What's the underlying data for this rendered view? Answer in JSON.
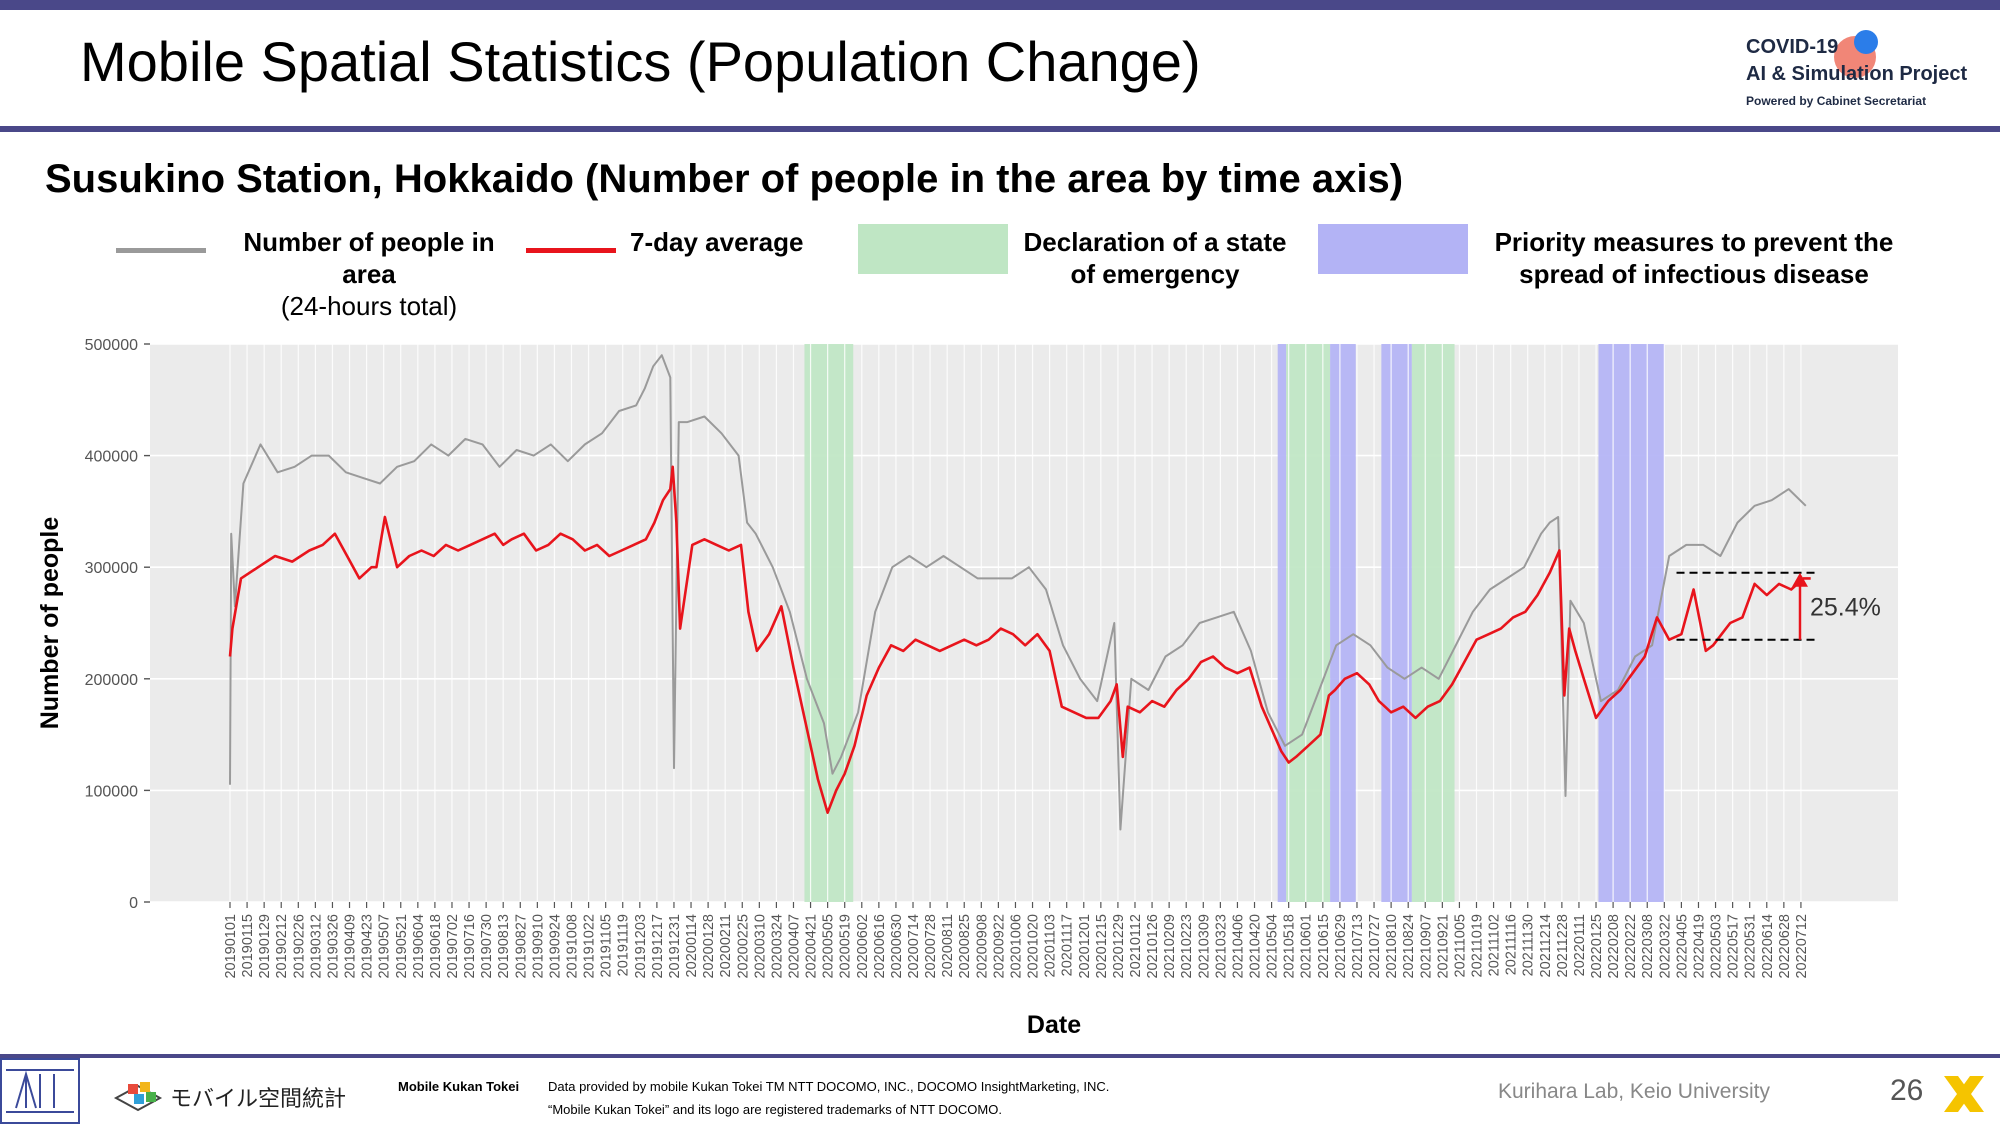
{
  "slide": {
    "title": "Mobile Spatial Statistics (Population Change)",
    "subtitle": "Susukino Station, Hokkaido (Number of people in the area by time axis)",
    "page_number": "26",
    "lab": "Kurihara Lab, Keio University"
  },
  "logo": {
    "line1": "COVID-19",
    "line2": "AI & Simulation Project",
    "line3": "Powered by Cabinet Secretariat"
  },
  "legend": {
    "raw_label": "Number of people in area",
    "raw_sub": "(24-hours total)",
    "avg_label": "7-day average",
    "emergency_label_1": "Declaration of a state",
    "emergency_label_2": "of emergency",
    "priority_label_1": "Priority measures to prevent the",
    "priority_label_2": "spread of infectious disease"
  },
  "footer": {
    "brand_text": "モバイル空間統計",
    "brand_label": "Mobile Kukan Tokei",
    "credit_line1": "Data provided by mobile Kukan Tokei TM NTT DOCOMO, INC., DOCOMO InsightMarketing, INC.",
    "credit_line2": "“Mobile Kukan Tokei” and its logo are registered trademarks of NTT DOCOMO."
  },
  "colors": {
    "raw_line": "#9a9a9a",
    "avg_line": "#e8141c",
    "emergency": "#bfe6c4",
    "priority": "#b3b3f5",
    "panel_bg": "#ebebeb",
    "accent_bar": "#4a4889"
  },
  "chart_data": {
    "type": "line",
    "xlabel": "Date",
    "ylabel": "Number of people",
    "ylim": [
      0,
      500000
    ],
    "yticks": [
      0,
      100000,
      200000,
      300000,
      400000,
      500000
    ],
    "ytick_labels": [
      "0",
      "100000",
      "200000",
      "300000",
      "400000",
      "500000"
    ],
    "grid": true,
    "x_start": "2019-01-01",
    "x_end": "2022-07-26",
    "xtick_labels": [
      "20190101",
      "20190115",
      "20190129",
      "20190212",
      "20190226",
      "20190312",
      "20190326",
      "20190409",
      "20190423",
      "20190507",
      "20190521",
      "20190604",
      "20190618",
      "20190702",
      "20190716",
      "20190730",
      "20190813",
      "20190827",
      "20190910",
      "20190924",
      "20191008",
      "20191022",
      "20191105",
      "20191119",
      "20191203",
      "20191217",
      "20191231",
      "20200114",
      "20200128",
      "20200211",
      "20200225",
      "20200310",
      "20200324",
      "20200407",
      "20200421",
      "20200505",
      "20200519",
      "20200602",
      "20200616",
      "20200630",
      "20200714",
      "20200728",
      "20200811",
      "20200825",
      "20200908",
      "20200922",
      "20201006",
      "20201020",
      "20201103",
      "20201117",
      "20201201",
      "20201215",
      "20201229",
      "20210112",
      "20210126",
      "20210209",
      "20210223",
      "20210309",
      "20210323",
      "20210406",
      "20210420",
      "20210504",
      "20210518",
      "20210601",
      "20210615",
      "20210629",
      "20210713",
      "20210727",
      "20210810",
      "20210824",
      "20210907",
      "20210921",
      "20211005",
      "20211019",
      "20211102",
      "20211116",
      "20211130",
      "20211214",
      "20211228",
      "20220111",
      "20220125",
      "20220208",
      "20220222",
      "20220308",
      "20220322",
      "20220405",
      "20220419",
      "20220503",
      "20220517",
      "20220531",
      "20220614",
      "20220628",
      "20220712"
    ],
    "shaded_periods": [
      {
        "kind": "emergency",
        "start": "2020-04-16",
        "end": "2020-05-25"
      },
      {
        "kind": "priority",
        "start": "2021-05-09",
        "end": "2021-05-15"
      },
      {
        "kind": "emergency",
        "start": "2021-05-16",
        "end": "2021-06-20"
      },
      {
        "kind": "priority",
        "start": "2021-06-21",
        "end": "2021-07-11"
      },
      {
        "kind": "priority",
        "start": "2021-08-02",
        "end": "2021-08-26"
      },
      {
        "kind": "emergency",
        "start": "2021-08-27",
        "end": "2021-09-30"
      },
      {
        "kind": "priority",
        "start": "2022-01-27",
        "end": "2022-03-21"
      }
    ],
    "series": [
      {
        "name": "Number of people in area",
        "style": "raw",
        "dates": [
          "2019-01-01",
          "2019-01-02",
          "2019-01-05",
          "2019-01-12",
          "2019-01-26",
          "2019-02-09",
          "2019-02-23",
          "2019-03-09",
          "2019-03-23",
          "2019-04-06",
          "2019-04-20",
          "2019-05-04",
          "2019-05-18",
          "2019-06-01",
          "2019-06-15",
          "2019-06-29",
          "2019-07-13",
          "2019-07-27",
          "2019-08-10",
          "2019-08-24",
          "2019-09-07",
          "2019-09-21",
          "2019-10-05",
          "2019-10-19",
          "2019-11-02",
          "2019-11-16",
          "2019-11-30",
          "2019-12-07",
          "2019-12-14",
          "2019-12-21",
          "2019-12-28",
          "2019-12-31",
          "2020-01-04",
          "2020-01-11",
          "2020-01-25",
          "2020-02-08",
          "2020-02-22",
          "2020-02-29",
          "2020-03-07",
          "2020-03-21",
          "2020-04-04",
          "2020-04-18",
          "2020-05-02",
          "2020-05-09",
          "2020-05-16",
          "2020-05-30",
          "2020-06-13",
          "2020-06-27",
          "2020-07-11",
          "2020-07-25",
          "2020-08-08",
          "2020-08-22",
          "2020-09-05",
          "2020-09-19",
          "2020-10-03",
          "2020-10-17",
          "2020-10-31",
          "2020-11-14",
          "2020-11-28",
          "2020-12-12",
          "2020-12-26",
          "2020-12-31",
          "2021-01-09",
          "2021-01-23",
          "2021-02-06",
          "2021-02-20",
          "2021-03-06",
          "2021-03-20",
          "2021-04-03",
          "2021-04-17",
          "2021-05-01",
          "2021-05-15",
          "2021-05-29",
          "2021-06-12",
          "2021-06-26",
          "2021-07-10",
          "2021-07-24",
          "2021-08-07",
          "2021-08-21",
          "2021-09-04",
          "2021-09-18",
          "2021-10-02",
          "2021-10-16",
          "2021-10-30",
          "2021-11-13",
          "2021-11-27",
          "2021-12-11",
          "2021-12-18",
          "2021-12-25",
          "2021-12-31",
          "2022-01-04",
          "2022-01-15",
          "2022-01-29",
          "2022-02-12",
          "2022-02-26",
          "2022-03-12",
          "2022-03-26",
          "2022-04-09",
          "2022-04-23",
          "2022-05-07",
          "2022-05-21",
          "2022-06-04",
          "2022-06-18",
          "2022-07-02",
          "2022-07-16"
        ],
        "values": [
          105000,
          330000,
          265000,
          375000,
          410000,
          385000,
          390000,
          400000,
          400000,
          385000,
          380000,
          375000,
          390000,
          395000,
          410000,
          400000,
          415000,
          410000,
          390000,
          405000,
          400000,
          410000,
          395000,
          410000,
          420000,
          440000,
          445000,
          460000,
          480000,
          490000,
          470000,
          120000,
          430000,
          430000,
          435000,
          420000,
          400000,
          340000,
          330000,
          300000,
          260000,
          200000,
          160000,
          115000,
          130000,
          170000,
          260000,
          300000,
          310000,
          300000,
          310000,
          300000,
          290000,
          290000,
          290000,
          300000,
          280000,
          230000,
          200000,
          180000,
          250000,
          65000,
          200000,
          190000,
          220000,
          230000,
          250000,
          255000,
          260000,
          225000,
          170000,
          140000,
          150000,
          190000,
          230000,
          240000,
          230000,
          210000,
          200000,
          210000,
          200000,
          230000,
          260000,
          280000,
          290000,
          300000,
          330000,
          340000,
          345000,
          95000,
          270000,
          250000,
          180000,
          190000,
          220000,
          230000,
          310000,
          320000,
          320000,
          310000,
          340000,
          355000,
          360000,
          370000,
          355000
        ]
      },
      {
        "name": "7-day average",
        "style": "avg",
        "dates": [
          "2019-01-01",
          "2019-01-03",
          "2019-01-10",
          "2019-01-24",
          "2019-02-07",
          "2019-02-21",
          "2019-03-07",
          "2019-03-18",
          "2019-03-28",
          "2019-04-07",
          "2019-04-17",
          "2019-04-27",
          "2019-05-01",
          "2019-05-08",
          "2019-05-18",
          "2019-05-28",
          "2019-06-07",
          "2019-06-17",
          "2019-06-27",
          "2019-07-07",
          "2019-07-17",
          "2019-07-27",
          "2019-08-06",
          "2019-08-13",
          "2019-08-20",
          "2019-08-30",
          "2019-09-09",
          "2019-09-19",
          "2019-09-29",
          "2019-10-09",
          "2019-10-19",
          "2019-10-29",
          "2019-11-08",
          "2019-11-18",
          "2019-11-28",
          "2019-12-08",
          "2019-12-15",
          "2019-12-22",
          "2019-12-28",
          "2019-12-30",
          "2020-01-02",
          "2020-01-05",
          "2020-01-15",
          "2020-01-25",
          "2020-02-04",
          "2020-02-14",
          "2020-02-24",
          "2020-03-01",
          "2020-03-08",
          "2020-03-18",
          "2020-03-28",
          "2020-04-07",
          "2020-04-17",
          "2020-04-27",
          "2020-05-05",
          "2020-05-12",
          "2020-05-19",
          "2020-05-27",
          "2020-06-06",
          "2020-06-16",
          "2020-06-26",
          "2020-07-06",
          "2020-07-16",
          "2020-07-26",
          "2020-08-05",
          "2020-08-15",
          "2020-08-25",
          "2020-09-04",
          "2020-09-14",
          "2020-09-24",
          "2020-10-04",
          "2020-10-14",
          "2020-10-24",
          "2020-11-03",
          "2020-11-13",
          "2020-11-23",
          "2020-12-03",
          "2020-12-13",
          "2020-12-23",
          "2020-12-28",
          "2021-01-02",
          "2021-01-06",
          "2021-01-16",
          "2021-01-26",
          "2021-02-05",
          "2021-02-15",
          "2021-02-25",
          "2021-03-07",
          "2021-03-17",
          "2021-03-27",
          "2021-04-06",
          "2021-04-16",
          "2021-04-26",
          "2021-05-06",
          "2021-05-12",
          "2021-05-18",
          "2021-05-24",
          "2021-06-03",
          "2021-06-13",
          "2021-06-20",
          "2021-06-25",
          "2021-07-03",
          "2021-07-13",
          "2021-07-23",
          "2021-07-31",
          "2021-08-10",
          "2021-08-20",
          "2021-08-30",
          "2021-09-09",
          "2021-09-19",
          "2021-09-29",
          "2021-10-09",
          "2021-10-19",
          "2021-10-29",
          "2021-11-08",
          "2021-11-18",
          "2021-11-28",
          "2021-12-08",
          "2021-12-18",
          "2021-12-26",
          "2021-12-30",
          "2022-01-03",
          "2022-01-08",
          "2022-01-15",
          "2022-01-25",
          "2022-02-04",
          "2022-02-14",
          "2022-02-24",
          "2022-03-06",
          "2022-03-16",
          "2022-03-26",
          "2022-04-05",
          "2022-04-15",
          "2022-04-25",
          "2022-05-01",
          "2022-05-08",
          "2022-05-15",
          "2022-05-25",
          "2022-06-04",
          "2022-06-14",
          "2022-06-24",
          "2022-07-04",
          "2022-07-14",
          "2022-07-20"
        ],
        "values": [
          220000,
          245000,
          290000,
          300000,
          310000,
          305000,
          315000,
          320000,
          330000,
          310000,
          290000,
          300000,
          300000,
          345000,
          300000,
          310000,
          315000,
          310000,
          320000,
          315000,
          320000,
          325000,
          330000,
          320000,
          325000,
          330000,
          315000,
          320000,
          330000,
          325000,
          315000,
          320000,
          310000,
          315000,
          320000,
          325000,
          340000,
          360000,
          370000,
          390000,
          340000,
          245000,
          320000,
          325000,
          320000,
          315000,
          320000,
          260000,
          225000,
          240000,
          265000,
          210000,
          160000,
          110000,
          80000,
          100000,
          115000,
          140000,
          185000,
          210000,
          230000,
          225000,
          235000,
          230000,
          225000,
          230000,
          235000,
          230000,
          235000,
          245000,
          240000,
          230000,
          240000,
          225000,
          175000,
          170000,
          165000,
          165000,
          180000,
          195000,
          130000,
          175000,
          170000,
          180000,
          175000,
          190000,
          200000,
          215000,
          220000,
          210000,
          205000,
          210000,
          175000,
          150000,
          135000,
          125000,
          130000,
          140000,
          150000,
          185000,
          190000,
          200000,
          205000,
          195000,
          180000,
          170000,
          175000,
          165000,
          175000,
          180000,
          195000,
          215000,
          235000,
          240000,
          245000,
          255000,
          260000,
          275000,
          295000,
          315000,
          185000,
          245000,
          225000,
          200000,
          165000,
          180000,
          190000,
          205000,
          220000,
          255000,
          235000,
          240000,
          280000,
          225000,
          230000,
          240000,
          250000,
          255000,
          285000,
          275000,
          285000,
          280000,
          290000,
          290000
        ]
      }
    ],
    "annotation": {
      "label": "25.4%",
      "from_value": 235000,
      "to_value": 295000,
      "start_date": "2022-04-01"
    }
  }
}
